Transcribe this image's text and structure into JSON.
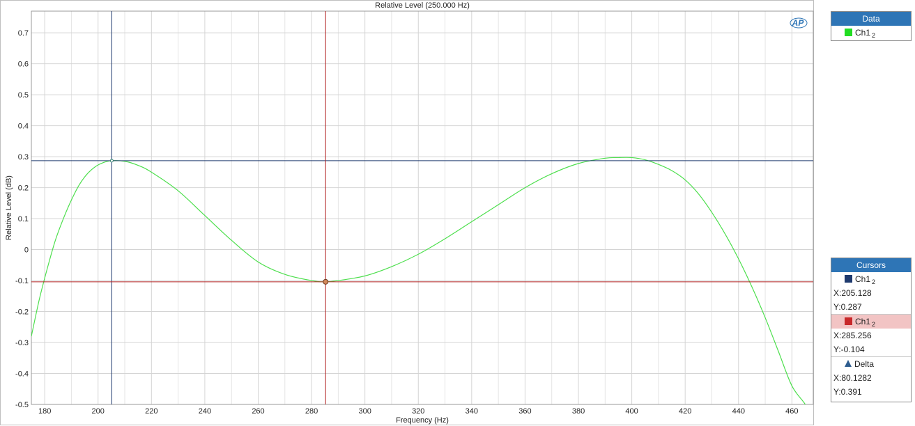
{
  "chart_data": {
    "type": "line",
    "title": "Relative Level (250.000 Hz)",
    "xlabel": "Frequency (Hz)",
    "ylabel": "Relative Level (dB)",
    "xlim": [
      175,
      468
    ],
    "ylim": [
      -0.5,
      0.77
    ],
    "x_ticks": [
      180,
      200,
      220,
      240,
      260,
      280,
      300,
      320,
      340,
      360,
      380,
      400,
      420,
      440,
      460
    ],
    "y_ticks": [
      0.7,
      0.6,
      0.5,
      0.4,
      0.3,
      0.2,
      0.1,
      0,
      -0.1,
      -0.2,
      -0.3,
      -0.4,
      -0.5
    ],
    "grid": true,
    "series": [
      {
        "name": "Ch1 2",
        "color": "#4ddf4d",
        "x": [
          175,
          178,
          181,
          184,
          187,
          190,
          193,
          196,
          199,
          202,
          205,
          210,
          215,
          220,
          230,
          240,
          250,
          260,
          270,
          280,
          285,
          290,
          300,
          310,
          320,
          330,
          340,
          350,
          360,
          370,
          380,
          390,
          395,
          400,
          405,
          410,
          415,
          420,
          425,
          430,
          435,
          440,
          445,
          450,
          455,
          460,
          465,
          468
        ],
        "y": [
          -0.28,
          -0.16,
          -0.06,
          0.03,
          0.1,
          0.16,
          0.21,
          0.245,
          0.268,
          0.281,
          0.287,
          0.285,
          0.272,
          0.25,
          0.19,
          0.11,
          0.03,
          -0.04,
          -0.08,
          -0.1,
          -0.104,
          -0.1,
          -0.085,
          -0.055,
          -0.015,
          0.035,
          0.09,
          0.145,
          0.2,
          0.245,
          0.278,
          0.295,
          0.297,
          0.297,
          0.29,
          0.275,
          0.255,
          0.225,
          0.18,
          0.12,
          0.05,
          -0.03,
          -0.12,
          -0.22,
          -0.33,
          -0.44,
          -0.5,
          -0.55
        ]
      }
    ],
    "cursors": [
      {
        "label": "Ch1",
        "sub": "2",
        "color": "#1f3a6e",
        "x": 205.128,
        "y": 0.287
      },
      {
        "label": "Ch1",
        "sub": "2",
        "color": "#b22222",
        "x": 285.256,
        "y": -0.104
      }
    ]
  },
  "logo": {
    "text": "AP"
  },
  "data_panel": {
    "title": "Data",
    "series_label": "Ch1",
    "series_sub": "2",
    "series_color": "#22dd22"
  },
  "cursors_panel": {
    "title": "Cursors",
    "cursor1": {
      "label": "Ch1",
      "sub": "2",
      "color": "#1f3a6e",
      "x_text": "X:205.128",
      "y_text": "Y:0.287"
    },
    "cursor2": {
      "label": "Ch1",
      "sub": "2",
      "color": "#c8282a",
      "x_text": "X:285.256",
      "y_text": "Y:-0.104"
    },
    "delta": {
      "label": "Delta",
      "x_text": "X:80.1282",
      "y_text": "Y:0.391"
    }
  }
}
